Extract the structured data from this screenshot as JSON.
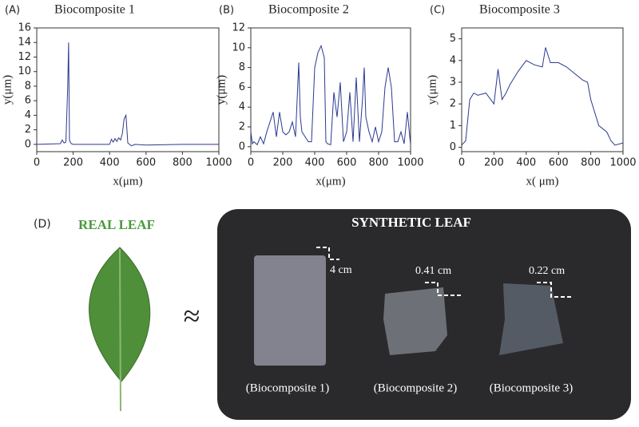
{
  "chart_data": [
    {
      "type": "line",
      "panel": "(A)",
      "title": "Biocomposite 1",
      "x_label": "x(μm)",
      "y_label": "y(μm)",
      "xlim": [
        0,
        1000
      ],
      "xticks": [
        0,
        200,
        400,
        600,
        800,
        1000
      ],
      "ylim": [
        -1,
        16
      ],
      "yticks": [
        0,
        2,
        4,
        6,
        8,
        10,
        12,
        14,
        16
      ],
      "series": [
        {
          "color": "#2b3990",
          "x": [
            0,
            130,
            140,
            150,
            160,
            170,
            175,
            180,
            190,
            200,
            400,
            410,
            420,
            430,
            440,
            450,
            460,
            470,
            480,
            490,
            500,
            510,
            520,
            540,
            600,
            800,
            1000
          ],
          "values": [
            0,
            0.1,
            0.6,
            0.2,
            0.3,
            8,
            14,
            0.5,
            0.1,
            0,
            0,
            0.7,
            0.3,
            0.8,
            0.4,
            0.9,
            0.6,
            1.5,
            3.5,
            4,
            0.2,
            0,
            -0.2,
            0,
            -0.1,
            0,
            0
          ]
        }
      ]
    },
    {
      "type": "line",
      "panel": "(B)",
      "title": "Biocomposite 2",
      "x_label": "x(μm)",
      "y_label": "y(μm)",
      "xlim": [
        0,
        1000
      ],
      "xticks": [
        0,
        200,
        400,
        600,
        800,
        1000
      ],
      "ylim": [
        -0.5,
        12
      ],
      "yticks": [
        0,
        2,
        4,
        6,
        8,
        10,
        12
      ],
      "series": [
        {
          "color": "#2b3990",
          "x": [
            0,
            10,
            20,
            40,
            60,
            80,
            100,
            120,
            140,
            160,
            180,
            200,
            220,
            240,
            260,
            280,
            300,
            310,
            320,
            340,
            360,
            380,
            400,
            420,
            440,
            460,
            470,
            480,
            500,
            520,
            540,
            560,
            580,
            600,
            620,
            640,
            660,
            680,
            700,
            710,
            720,
            740,
            760,
            780,
            800,
            820,
            840,
            860,
            880,
            900,
            920,
            940,
            960,
            980,
            1000
          ],
          "values": [
            1.5,
            0.3,
            0.5,
            0.2,
            1,
            0.3,
            1.5,
            2.5,
            3.5,
            1,
            3.5,
            1.5,
            1.2,
            1.5,
            2.5,
            1,
            8.5,
            3,
            1.5,
            1,
            0.5,
            0.5,
            8,
            9.5,
            10.2,
            9,
            0.5,
            0.3,
            0.2,
            5.5,
            3,
            6.5,
            0.5,
            1.5,
            5.5,
            0.5,
            7,
            0.5,
            5,
            8,
            3,
            1.5,
            0.5,
            2,
            0.5,
            1.5,
            6,
            8,
            6,
            0.5,
            0.5,
            1.5,
            0.3,
            3.5,
            0.2
          ]
        }
      ]
    },
    {
      "type": "line",
      "panel": "(C)",
      "title": "Biocomposite 3",
      "x_label": "x( μm)",
      "y_label": "y(μm)",
      "xlim": [
        0,
        1000
      ],
      "xticks": [
        0,
        200,
        400,
        600,
        800,
        1000
      ],
      "ylim": [
        -0.2,
        5.5
      ],
      "yticks": [
        0,
        1,
        2,
        3,
        4,
        5
      ],
      "series": [
        {
          "color": "#2b3990",
          "x": [
            0,
            25,
            50,
            75,
            100,
            150,
            200,
            225,
            250,
            275,
            300,
            350,
            400,
            450,
            500,
            520,
            550,
            600,
            650,
            700,
            750,
            780,
            800,
            850,
            900,
            925,
            950,
            1000
          ],
          "values": [
            0.1,
            0.3,
            2.2,
            2.5,
            2.4,
            2.5,
            2.0,
            3.6,
            2.2,
            2.5,
            2.9,
            3.5,
            4.0,
            3.8,
            3.7,
            4.6,
            3.9,
            3.9,
            3.7,
            3.4,
            3.1,
            3.0,
            2.2,
            1.0,
            0.7,
            0.3,
            0.1,
            0.2
          ]
        }
      ]
    }
  ],
  "panel_d": {
    "label": "(D)",
    "real": "REAL LEAF",
    "approx": "≈",
    "synthetic": "SYNTHETIC LEAF",
    "dims": [
      "4 cm",
      "0.41 cm",
      "0.22 cm"
    ],
    "captions": [
      "(Biocomposite 1)",
      "(Biocomposite 2)",
      "(Biocomposite 3)"
    ]
  }
}
